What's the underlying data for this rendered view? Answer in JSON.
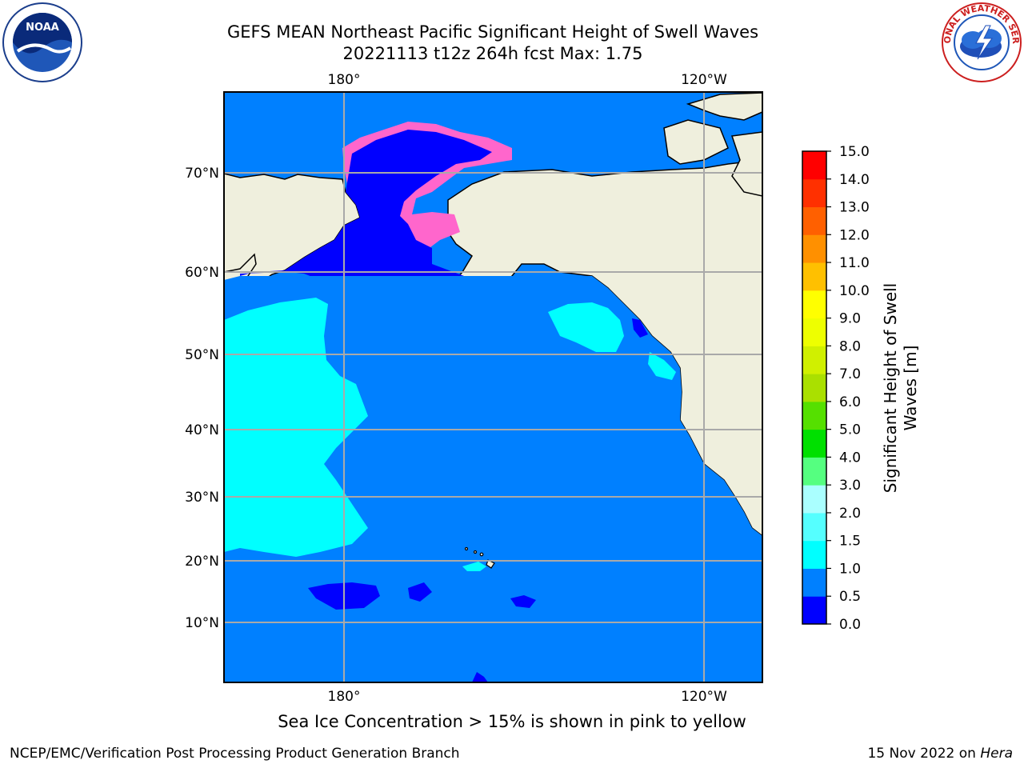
{
  "title": {
    "line1": "GEFS MEAN Northeast Pacific Significant Height of Swell Waves",
    "line2": "20221113 t12z 264h fcst   Max: 1.75"
  },
  "logos": {
    "left": {
      "name": "noaa-logo",
      "text": "NOAA"
    },
    "right": {
      "name": "nws-logo",
      "text": "NATIONAL WEATHER SERVICE"
    }
  },
  "map": {
    "top_lon_labels": [
      "180°",
      "120°W"
    ],
    "bottom_lon_labels": [
      "180°",
      "120°W"
    ],
    "lat_labels": [
      "70°N",
      "60°N",
      "50°N",
      "40°N",
      "30°N",
      "20°N",
      "10°N"
    ],
    "colors": {
      "land": "#efefdd",
      "ocean_0_05": "#0000ff",
      "ocean_05_1": "#0080ff",
      "ocean_1_15": "#00ffff",
      "gridline": "#a9a9a9",
      "ice": "#ff66cc"
    }
  },
  "colorbar": {
    "label": "Significant Height of Swell Waves [m]",
    "label_line1": "Significant Height of Swell",
    "label_line2": "Waves [m]",
    "ticks": [
      "15.0",
      "14.0",
      "13.0",
      "12.0",
      "11.0",
      "10.0",
      "9.0",
      "8.0",
      "7.0",
      "6.0",
      "5.0",
      "4.0",
      "3.0",
      "2.0",
      "1.5",
      "1.0",
      "0.5",
      "0.0"
    ],
    "colors": [
      "#0000ff",
      "#0080ff",
      "#00ffff",
      "#55ffff",
      "#aaffff",
      "#55ff80",
      "#00e000",
      "#55e000",
      "#aae000",
      "#d0f000",
      "#eeff00",
      "#ffff00",
      "#ffc000",
      "#ff9000",
      "#ff6000",
      "#ff3000",
      "#ff0000"
    ]
  },
  "caption": "Sea Ice Concentration > 15% is shown in pink to yellow",
  "footer": {
    "left": "NCEP/EMC/Verification Post Processing Product Generation Branch",
    "right_date": "15 Nov 2022 on ",
    "right_host": "Hera"
  }
}
